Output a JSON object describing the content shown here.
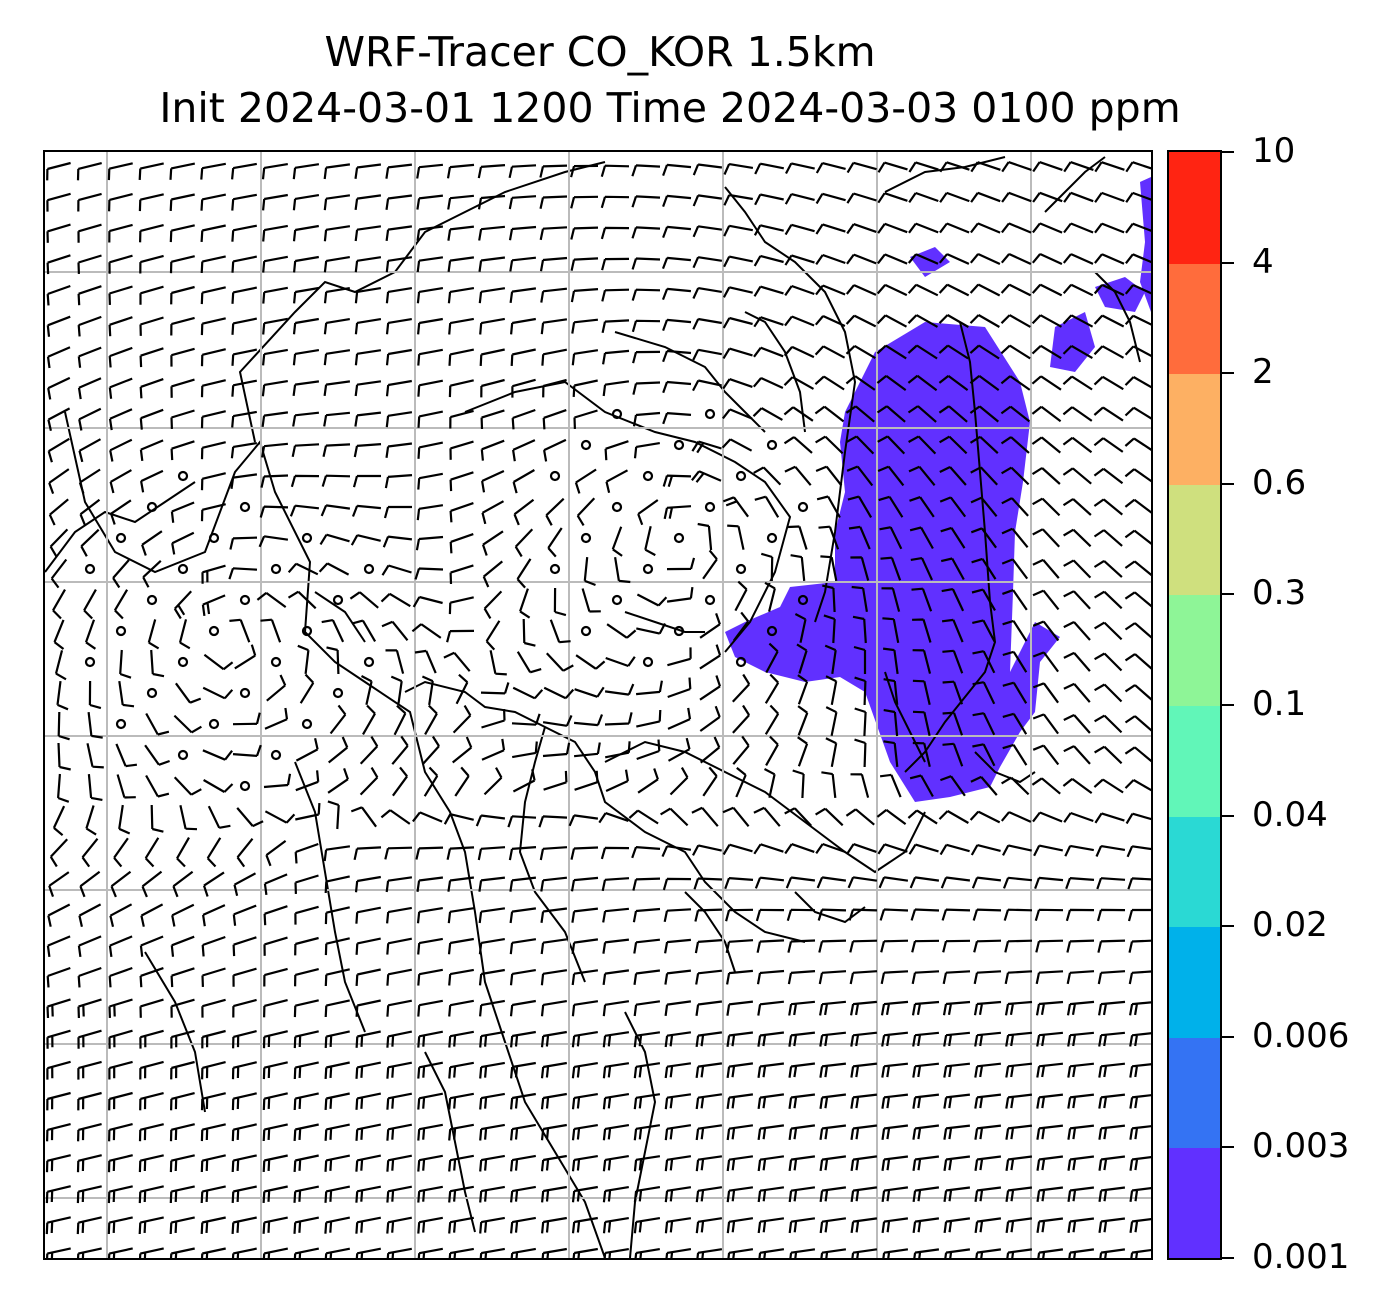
{
  "title": {
    "line1": "WRF-Tracer CO_KOR 1.5km",
    "line2": "Init 2024-03-01 1200 Time 2024-03-03 0100 ppm"
  },
  "colorbar": {
    "levels": [
      "0.001",
      "0.003",
      "0.006",
      "0.02",
      "0.04",
      "0.1",
      "0.3",
      "0.6",
      "2",
      "4",
      "10"
    ],
    "colors": [
      "#6130ff",
      "#3473f3",
      "#00b1ea",
      "#2ad9d4",
      "#61f6b8",
      "#8ef597",
      "#cfe07e",
      "#fdb063",
      "#ff6c3c",
      "#ff2412"
    ]
  },
  "map": {
    "plume_color": "#6130ff",
    "gridline_color": "#bbbbbb",
    "coastline_color": "#000000"
  }
}
